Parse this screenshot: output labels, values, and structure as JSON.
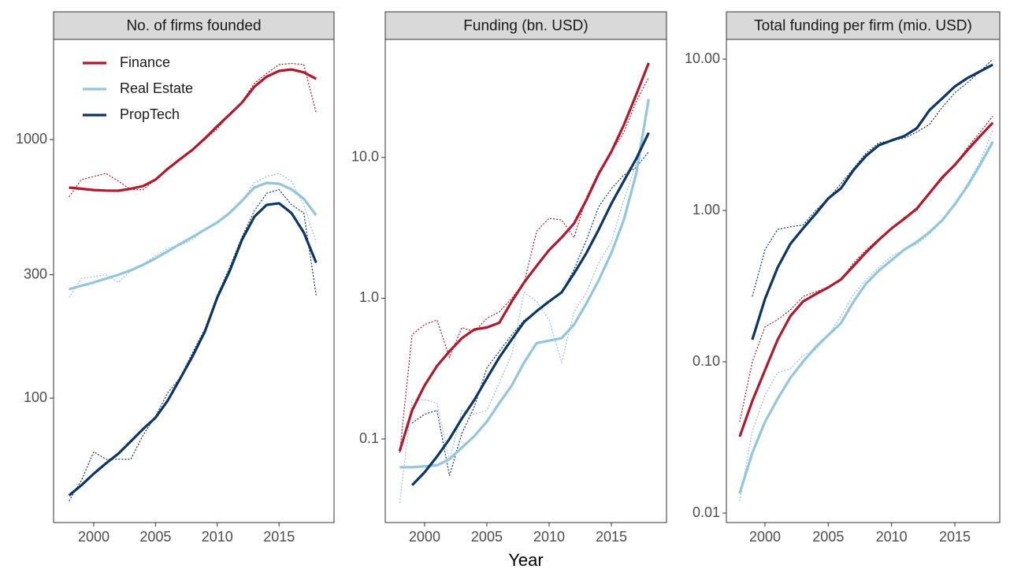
{
  "chart_data": [
    {
      "type": "line",
      "title": "No. of firms founded",
      "legend": "top-left",
      "log_y": true,
      "x": [
        1998,
        1999,
        2000,
        2001,
        2002,
        2003,
        2004,
        2005,
        2006,
        2007,
        2008,
        2009,
        2010,
        2011,
        2012,
        2013,
        2014,
        2015,
        2016,
        2017,
        2018
      ],
      "xlim": [
        1996.75,
        2019.45
      ],
      "xticks": [
        2000,
        2005,
        2010,
        2015
      ],
      "ylim": [
        33,
        2440
      ],
      "yticks": [
        100,
        300,
        1000
      ],
      "series": [
        {
          "name": "Finance",
          "color": "#b2182b",
          "values": [
            652,
            645,
            638,
            635,
            634,
            645,
            661,
            700,
            771,
            840,
            913,
            1010,
            1127,
            1250,
            1391,
            1600,
            1750,
            1843,
            1868,
            1820,
            1716
          ],
          "raw_values": [
            600,
            700,
            720,
            740,
            690,
            640,
            640,
            700,
            780,
            840,
            910,
            1000,
            1100,
            1250,
            1400,
            1650,
            1800,
            1950,
            1970,
            1950,
            1270
          ]
        },
        {
          "name": "Real Estate",
          "color": "#92c5de",
          "values": [
            264,
            272,
            280,
            290,
            300,
            312,
            328,
            347,
            370,
            395,
            420,
            448,
            478,
            520,
            580,
            652,
            680,
            675,
            642,
            590,
            510
          ],
          "raw_values": [
            245,
            290,
            295,
            300,
            280,
            310,
            330,
            355,
            380,
            390,
            410,
            450,
            480,
            520,
            580,
            680,
            720,
            740,
            690,
            560,
            400
          ]
        },
        {
          "name": "PropTech",
          "color": "#0b3563",
          "values": [
            42,
            46,
            51,
            56,
            61,
            68,
            76,
            84,
            98,
            119,
            145,
            181,
            245,
            310,
            410,
            503,
            559,
            567,
            520,
            437,
            334
          ],
          "raw_values": [
            40,
            48,
            62,
            58,
            58,
            58,
            72,
            85,
            105,
            120,
            150,
            185,
            250,
            320,
            420,
            530,
            620,
            640,
            560,
            520,
            250
          ]
        }
      ]
    },
    {
      "type": "line",
      "title": "Funding (bn. USD)",
      "xlabel": "Year",
      "log_y": true,
      "x": [
        1998,
        1999,
        2000,
        2001,
        2002,
        2003,
        2004,
        2005,
        2006,
        2007,
        2008,
        2009,
        2010,
        2011,
        2012,
        2013,
        2014,
        2015,
        2016,
        2017,
        2018
      ],
      "xlim": [
        1996.84,
        2019.43
      ],
      "xticks": [
        2000,
        2005,
        2010,
        2015
      ],
      "ylim": [
        0.0255,
        69
      ],
      "yticks": [
        0.1,
        {
          "value": 1,
          "label": "1.0"
        },
        {
          "value": 10,
          "label": "10.0"
        }
      ],
      "series": [
        {
          "name": "Finance",
          "color": "#b2182b",
          "values": [
            0.082,
            0.16,
            0.24,
            0.33,
            0.42,
            0.52,
            0.6,
            0.62,
            0.67,
            0.95,
            1.3,
            1.7,
            2.2,
            2.7,
            3.4,
            5,
            7.7,
            11,
            17,
            28,
            47
          ],
          "raw_values": [
            0.08,
            0.55,
            0.65,
            0.7,
            0.38,
            0.62,
            0.58,
            0.72,
            0.8,
            1.0,
            1.3,
            3.0,
            3.7,
            3.6,
            2.7,
            5.2,
            8,
            11,
            15,
            25,
            37
          ]
        },
        {
          "name": "Real Estate",
          "color": "#92c5de",
          "values": [
            0.063,
            0.063,
            0.064,
            0.065,
            0.072,
            0.087,
            0.105,
            0.133,
            0.18,
            0.24,
            0.35,
            0.48,
            0.5,
            0.52,
            0.65,
            0.92,
            1.35,
            2.1,
            3.6,
            7.7,
            26
          ],
          "raw_values": [
            0.035,
            0.19,
            0.19,
            0.18,
            0.07,
            0.16,
            0.15,
            0.16,
            0.25,
            0.4,
            1.1,
            0.95,
            0.7,
            0.35,
            0.8,
            1.1,
            1.8,
            2.5,
            5,
            9,
            25
          ]
        },
        {
          "name": "PropTech",
          "color": "#0b3563",
          "values": [
            null,
            0.047,
            0.058,
            0.075,
            0.1,
            0.14,
            0.19,
            0.27,
            0.38,
            0.51,
            0.68,
            0.81,
            0.95,
            1.1,
            1.5,
            2.1,
            3.1,
            4.7,
            6.8,
            9.8,
            15
          ],
          "raw_values": [
            null,
            0.13,
            0.15,
            0.16,
            0.055,
            0.11,
            0.17,
            0.32,
            0.42,
            0.55,
            0.7,
            0.8,
            0.95,
            1.1,
            1.6,
            2.6,
            4.5,
            6,
            7.5,
            8.5,
            11
          ]
        }
      ]
    },
    {
      "type": "line",
      "title": "Total funding per firm  (mio. USD)",
      "log_y": true,
      "x": [
        1998,
        1999,
        2000,
        2001,
        2002,
        2003,
        2004,
        2005,
        2006,
        2007,
        2008,
        2009,
        2010,
        2011,
        2012,
        2013,
        2014,
        2015,
        2016,
        2017,
        2018
      ],
      "xlim": [
        1996.95,
        2018.55
      ],
      "xticks": [
        2000,
        2005,
        2010,
        2015
      ],
      "ylim": [
        0.00866,
        13.5
      ],
      "yticks": [
        0.01,
        {
          "value": 0.1,
          "label": "0.10"
        },
        {
          "value": 1,
          "label": "1.00"
        },
        {
          "value": 10,
          "label": "10.00"
        }
      ],
      "series": [
        {
          "name": "Finance",
          "color": "#b2182b",
          "values": [
            0.032,
            0.055,
            0.088,
            0.14,
            0.2,
            0.25,
            0.28,
            0.31,
            0.35,
            0.43,
            0.53,
            0.64,
            0.76,
            0.88,
            1.03,
            1.3,
            1.65,
            2.0,
            2.5,
            3.1,
            3.8
          ],
          "raw_values": [
            0.04,
            0.1,
            0.17,
            0.19,
            0.22,
            0.27,
            0.29,
            0.31,
            0.35,
            0.45,
            0.55,
            0.65,
            0.75,
            0.9,
            1.0,
            1.3,
            1.6,
            2.0,
            2.6,
            3.3,
            4.2
          ]
        },
        {
          "name": "Real Estate",
          "color": "#92c5de",
          "values": [
            0.0135,
            0.025,
            0.04,
            0.057,
            0.078,
            0.1,
            0.125,
            0.15,
            0.18,
            0.25,
            0.33,
            0.4,
            0.47,
            0.55,
            0.62,
            0.72,
            0.86,
            1.1,
            1.45,
            2.0,
            2.85
          ],
          "raw_values": [
            0.012,
            0.035,
            0.06,
            0.085,
            0.09,
            0.11,
            0.12,
            0.15,
            0.2,
            0.28,
            0.35,
            0.42,
            0.5,
            0.55,
            0.6,
            0.7,
            0.85,
            1.1,
            1.5,
            2.1,
            3.4
          ]
        },
        {
          "name": "PropTech",
          "color": "#0b3563",
          "values": [
            null,
            0.14,
            0.26,
            0.42,
            0.6,
            0.76,
            0.95,
            1.2,
            1.4,
            1.85,
            2.3,
            2.7,
            2.9,
            3.1,
            3.5,
            4.6,
            5.5,
            6.6,
            7.5,
            8.3,
            9.2
          ],
          "raw_values": [
            null,
            0.27,
            0.55,
            0.75,
            0.78,
            0.8,
            1.0,
            1.2,
            1.5,
            1.9,
            2.4,
            2.8,
            2.9,
            3.0,
            3.3,
            3.7,
            4.8,
            6,
            7,
            8.3,
            10
          ]
        }
      ]
    }
  ]
}
